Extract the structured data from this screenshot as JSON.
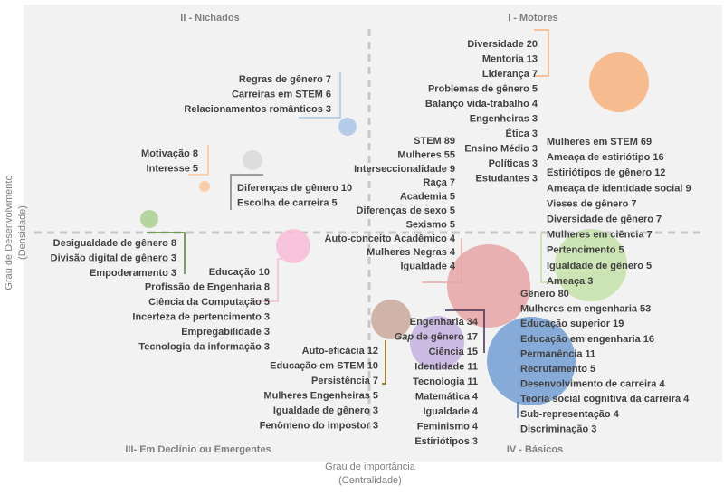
{
  "chart_data": {
    "type": "bubble-scatter",
    "xlabel": [
      "Grau de importância",
      "(Centralidade)"
    ],
    "ylabel": [
      "Grau de Desenvolvimento",
      "(Densidade)"
    ],
    "quadrants": {
      "top_left": "II - Nichados",
      "top_right": "I - Motores",
      "bottom_left": "III- Em Declínio ou Emergentes",
      "bottom_right": "IV - Básicos"
    },
    "clusters": [
      {
        "id": "orange-big",
        "color": "#f8b17f",
        "keywords": [
          "Diversidade 20",
          "Mentoria 13",
          "Liderança 7",
          "Problemas de gênero 5",
          "Balanço vida-trabalho 4",
          "Engenheiras 3",
          "Ética 3",
          "Ensino Médio 3",
          "Políticas 3",
          "Estudantes 3"
        ]
      },
      {
        "id": "blue-small",
        "color": "#a9c4e8",
        "keywords": [
          "Regras de gênero 7",
          "Carreiras em STEM 6",
          "Relacionamentos românticos  3"
        ]
      },
      {
        "id": "peach-small",
        "color": "#f9c89b",
        "keywords": [
          "Motivação 8",
          "Interesse 5"
        ]
      },
      {
        "id": "gray-small",
        "color": "#d9d9d9",
        "keywords": [
          "Diferenças de gênero 10",
          "Escolha de carreira 5"
        ]
      },
      {
        "id": "green-small",
        "color": "#a9d08e",
        "keywords": [
          "Desigualdade de gênero 8",
          "Divisão digital de gênero 3",
          "Empoderamento 3"
        ]
      },
      {
        "id": "pink-medium",
        "color": "#f8bcd7",
        "keywords": [
          "Educação 10",
          "Profissão de Engenharia  8",
          "Ciência da Computação 5",
          "Incerteza de pertencimento 3",
          "Empregabilidade 3",
          "Tecnologia da informação 3"
        ]
      },
      {
        "id": "red-large",
        "color": "#e6a5a5",
        "keywords": [
          "STEM 89",
          "Mulheres 55",
          "Interseccionalidade  9",
          "Raça 7",
          "Academia 5",
          "Diferenças de sexo 5",
          "Sexismo 5",
          "Auto-conceito Acadêmico 4",
          "Mulheres Negras 4",
          "Igualdade 4"
        ]
      },
      {
        "id": "green-large",
        "color": "#c5e0a8",
        "keywords": [
          "Mulheres em STEM 69",
          "Ameaça de estiriótipo 16",
          "Estiriótipos de gênero  12",
          "Ameaça de identidade social 9",
          "Vieses de gênero 7",
          "Diversidade de gênero 7",
          "Mulheres em ciência 7",
          "Pertencimento 5",
          "Igualdade de gênero 5",
          "Ameaça 3"
        ]
      },
      {
        "id": "brown-medium",
        "color": "#c9a99a",
        "keywords": [
          "Auto-eficácia 12",
          "Educação em STEM 10",
          "Persistência 7",
          "Mulheres Engenheiras 5",
          "Igualdade de gênero 3",
          "Fenômeno do impostor 3"
        ]
      },
      {
        "id": "purple-medium",
        "color": "#c5b3e0",
        "keywords": [
          "Engenharia 34",
          "Gap de gênero 17",
          "Ciência 15",
          "Identidade 11",
          "Tecnologia 11",
          "Matemática 4",
          "Igualdade 4",
          "Feminismo 4",
          "Estiriótipos 3"
        ]
      },
      {
        "id": "blue-large",
        "color": "#7aa3d6",
        "keywords": [
          "Gênero 80",
          "Mulheres em engenharia 53",
          "Educação superior 19",
          "Educação em engenharia 16",
          "Permanência 11",
          "Recrutamento 5",
          "Desenvolvimento de carreira 4",
          "Teoria social cognitiva da carreira 4",
          "Sub-representação 4",
          "Discriminação  3"
        ]
      }
    ]
  }
}
